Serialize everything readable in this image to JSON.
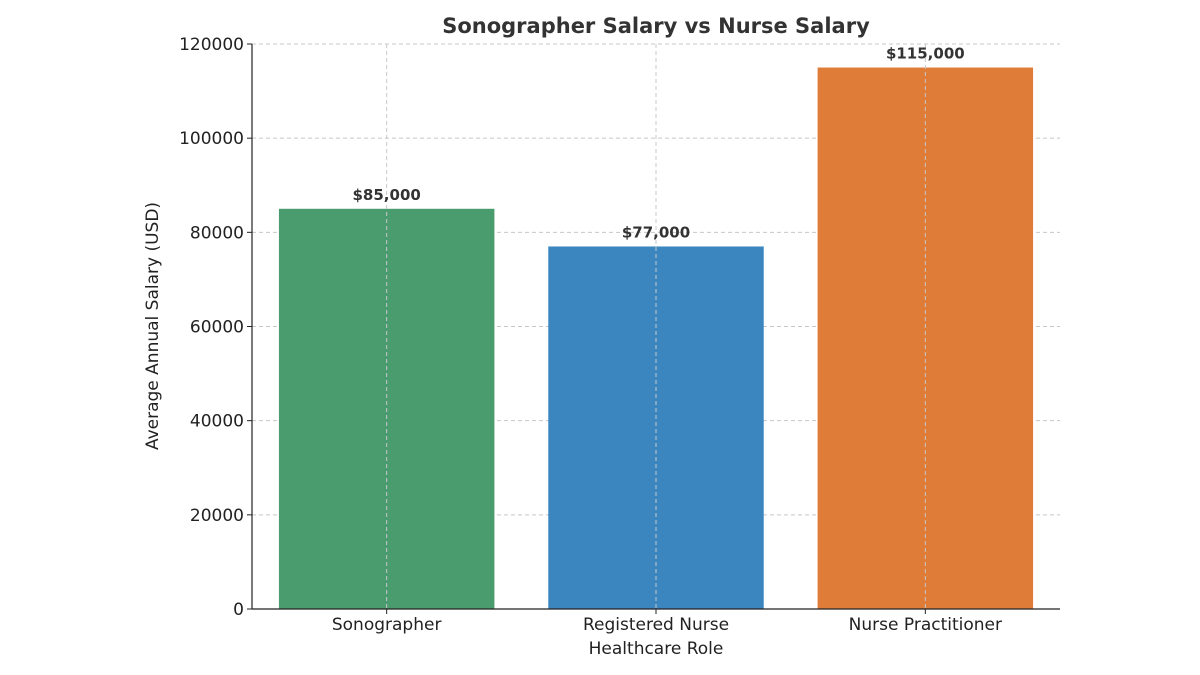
{
  "chart_data": {
    "type": "bar",
    "title": "Sonographer Salary vs Nurse Salary",
    "xlabel": "Healthcare Role",
    "ylabel": "Average Annual Salary (USD)",
    "categories": [
      "Sonographer",
      "Registered Nurse",
      "Nurse Practitioner"
    ],
    "values": [
      85000,
      77000,
      115000
    ],
    "data_labels": [
      "$85,000",
      "$77,000",
      "$115,000"
    ],
    "colors": [
      "#4a9c6f",
      "#3c86c0",
      "#de7c38"
    ],
    "ylim": [
      0,
      120000
    ],
    "yticks": [
      0,
      20000,
      40000,
      60000,
      80000,
      100000,
      120000
    ],
    "ytick_labels": [
      "0",
      "20000",
      "40000",
      "60000",
      "80000",
      "100000",
      "120000"
    ],
    "grid": true,
    "legend": "none"
  }
}
